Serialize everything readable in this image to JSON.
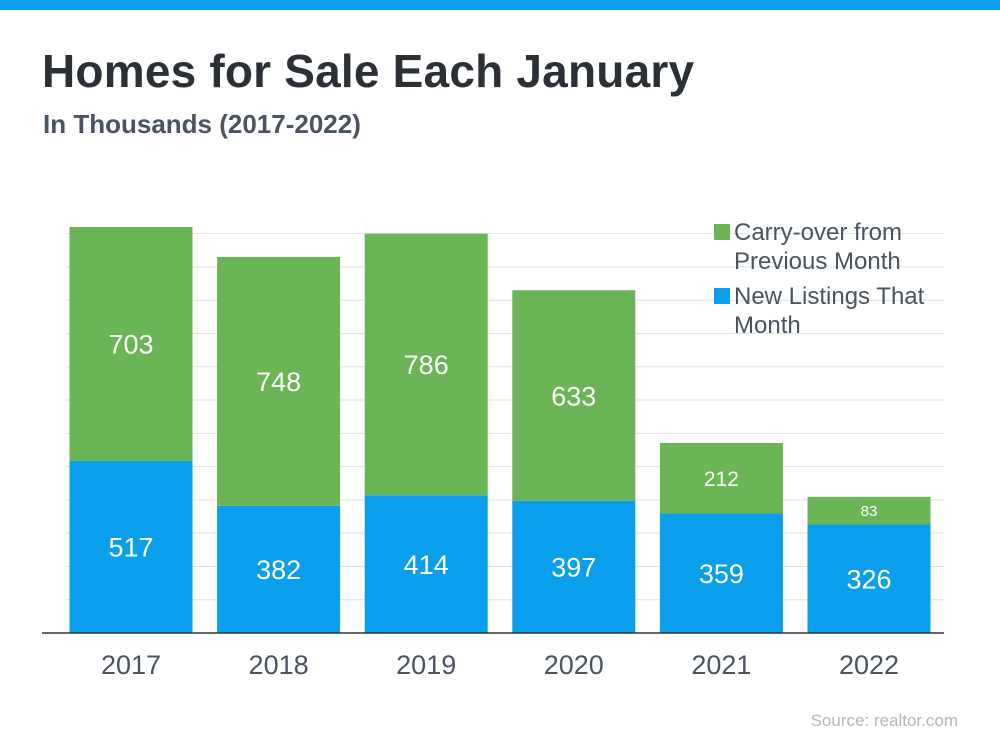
{
  "chart_data": {
    "type": "bar",
    "stacked": true,
    "title": "Homes for Sale Each January",
    "subtitle": "In Thousands (2017-2022)",
    "categories": [
      "2017",
      "2018",
      "2019",
      "2020",
      "2021",
      "2022"
    ],
    "series": [
      {
        "name": "New Listings That Month",
        "color": "#0a9fec",
        "values": [
          517,
          382,
          414,
          397,
          359,
          326
        ]
      },
      {
        "name": "Carry-over from Previous Month",
        "color": "#6ab555",
        "values": [
          703,
          748,
          786,
          633,
          212,
          83
        ]
      }
    ],
    "legend": {
      "placement": "top-right",
      "entries": [
        {
          "lines": [
            "Carry-over from",
            "Previous Month"
          ],
          "color": "#6ab555"
        },
        {
          "lines": [
            "New Listings That",
            "Month"
          ],
          "color": "#0a9fec"
        }
      ]
    },
    "ylim": [
      0,
      1200
    ],
    "grid": true,
    "y_axis_labels_shown": false
  },
  "source": "Source: realtor.com",
  "colors": {
    "accent_bar": "#0a9fec",
    "title": "#2b3036",
    "subtitle": "#4a5360",
    "axis_text": "#4a5360",
    "gridline": "#e2e2e2",
    "value_label": "#ffffff"
  }
}
